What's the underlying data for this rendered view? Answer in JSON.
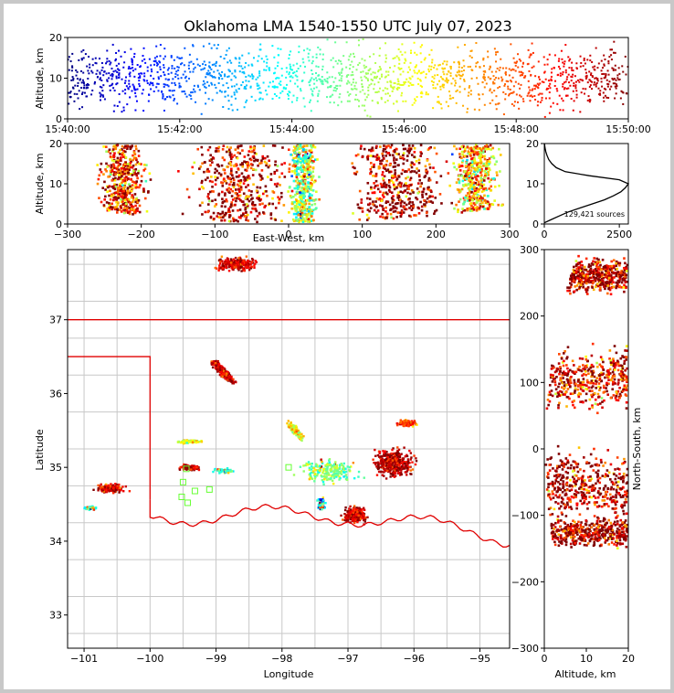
{
  "chart_data": {
    "type": "scatter",
    "title": "Oklahoma LMA 1540-1550 UTC July 07, 2023",
    "colormap": "jet (early sources blue, late sources dark red)",
    "source_count_label": "129,421 sources",
    "panels": {
      "time_height": {
        "ylabel": "Altitude, km",
        "ylim": [
          0,
          20
        ],
        "yticks": [
          "0",
          "10",
          "20"
        ],
        "xticks": [
          "15:40:00",
          "15:42:00",
          "15:44:00",
          "15:46:00",
          "15:48:00",
          "15:50:00"
        ]
      },
      "ew_height": {
        "xlabel": "East-West, km",
        "ylabel": "Altitude, km",
        "xlim": [
          -300,
          300
        ],
        "ylim": [
          0,
          20
        ],
        "xticks": [
          "−300",
          "−200",
          "−100",
          "0",
          "100",
          "200",
          "300"
        ],
        "yticks": [
          "0",
          "10",
          "20"
        ]
      },
      "altitude_histogram": {
        "xlim": [
          0,
          2800
        ],
        "xticks": [
          "0",
          "2500"
        ],
        "yticks": [
          "0",
          "10",
          "20"
        ],
        "profile": [
          [
            0,
            0.3
          ],
          [
            200,
            1
          ],
          [
            500,
            2
          ],
          [
            800,
            3
          ],
          [
            1200,
            4
          ],
          [
            1600,
            5
          ],
          [
            2000,
            6
          ],
          [
            2300,
            7
          ],
          [
            2550,
            8
          ],
          [
            2700,
            9
          ],
          [
            2800,
            10
          ],
          [
            2500,
            11
          ],
          [
            1500,
            12
          ],
          [
            700,
            13
          ],
          [
            400,
            14
          ],
          [
            250,
            15
          ],
          [
            150,
            16
          ],
          [
            90,
            17
          ],
          [
            50,
            18
          ],
          [
            20,
            19
          ],
          [
            5,
            20
          ]
        ]
      },
      "plan_view": {
        "xlabel": "Longitude",
        "ylabel": "Latitude",
        "xlim": [
          -101.25,
          -94.55
        ],
        "ylim": [
          32.55,
          37.95
        ],
        "xticks": [
          "−101",
          "−100",
          "−99",
          "−98",
          "−97",
          "−96",
          "−95"
        ],
        "yticks": [
          "33",
          "34",
          "35",
          "36",
          "37"
        ]
      },
      "ns_height": {
        "xlabel": "Altitude, km",
        "ylabel": "North-South, km",
        "xlim": [
          0,
          20
        ],
        "ylim": [
          -300,
          300
        ],
        "xticks": [
          "0",
          "10",
          "20"
        ],
        "yticks": [
          "−300",
          "−200",
          "−100",
          "0",
          "100",
          "200",
          "300"
        ]
      }
    },
    "stations": [
      [
        -99.45,
        34.98
      ],
      [
        -99.32,
        34.68
      ],
      [
        -99.52,
        34.6
      ],
      [
        -99.43,
        34.52
      ],
      [
        -99.1,
        34.7
      ],
      [
        -97.9,
        35.0
      ],
      [
        -99.5,
        34.8
      ]
    ]
  }
}
